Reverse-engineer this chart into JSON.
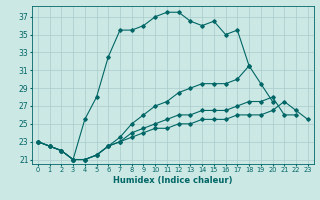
{
  "title": "",
  "xlabel": "Humidex (Indice chaleur)",
  "ylabel": "",
  "bg_color": "#cce8e4",
  "grid_color": "#aacccc",
  "line_color": "#006666",
  "xlim": [
    -0.5,
    23.5
  ],
  "ylim": [
    20.5,
    38.2
  ],
  "xticks": [
    0,
    1,
    2,
    3,
    4,
    5,
    6,
    7,
    8,
    9,
    10,
    11,
    12,
    13,
    14,
    15,
    16,
    17,
    18,
    19,
    20,
    21,
    22,
    23
  ],
  "yticks": [
    21,
    23,
    25,
    27,
    29,
    31,
    33,
    35,
    37
  ],
  "series": [
    [
      23.0,
      22.5,
      22.0,
      21.0,
      25.5,
      28.0,
      32.5,
      35.5,
      35.5,
      36.0,
      37.0,
      37.5,
      37.5,
      36.5,
      36.0,
      36.5,
      35.0,
      35.5,
      31.5,
      null,
      null,
      null,
      null,
      null
    ],
    [
      23.0,
      22.5,
      22.0,
      21.0,
      21.0,
      21.5,
      22.5,
      23.5,
      25.0,
      26.0,
      27.0,
      27.5,
      28.5,
      29.0,
      29.5,
      29.5,
      29.5,
      30.0,
      31.5,
      29.5,
      27.5,
      null,
      null,
      null
    ],
    [
      23.0,
      22.5,
      22.0,
      21.0,
      21.0,
      21.5,
      22.5,
      23.0,
      24.0,
      24.5,
      25.0,
      25.5,
      26.0,
      26.0,
      26.5,
      26.5,
      26.5,
      27.0,
      27.5,
      27.5,
      28.0,
      26.0,
      26.0,
      null
    ],
    [
      23.0,
      22.5,
      22.0,
      21.0,
      21.0,
      21.5,
      22.5,
      23.0,
      23.5,
      24.0,
      24.5,
      24.5,
      25.0,
      25.0,
      25.5,
      25.5,
      25.5,
      26.0,
      26.0,
      26.0,
      26.5,
      27.5,
      26.5,
      25.5
    ]
  ]
}
